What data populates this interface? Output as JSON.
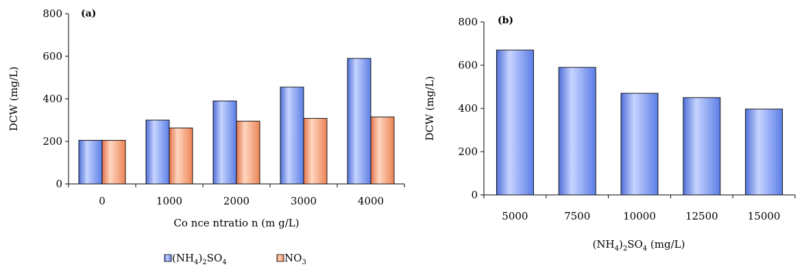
{
  "colors": {
    "series_blue": "#7f9cf4",
    "series_orange": "#f7a27a",
    "axis": "#000000"
  },
  "chart_data": [
    {
      "type": "bar",
      "panel_label": "(a)",
      "categories": [
        "0",
        "1000",
        "2000",
        "3000",
        "4000"
      ],
      "series": [
        {
          "name": "(NH4)2SO4",
          "values": [
            205,
            300,
            390,
            455,
            590
          ]
        },
        {
          "name": "NO3",
          "values": [
            205,
            263,
            295,
            308,
            315
          ]
        }
      ],
      "xlabel": "Co nce ntratio n (m g/L)",
      "ylabel": "DCW (mg/L)",
      "ylim": [
        0,
        800
      ],
      "yticks": [
        "0",
        "200",
        "400",
        "600",
        "800"
      ],
      "grid": false,
      "legend_position": "bottom"
    },
    {
      "type": "bar",
      "panel_label": "(b)",
      "categories": [
        "5000",
        "7500",
        "10000",
        "12500",
        "15000"
      ],
      "values": [
        670,
        590,
        470,
        450,
        397
      ],
      "xlabel": "(NH4)2SO4 (mg/L)",
      "ylabel": "DCW (mg/L)",
      "ylim": [
        0,
        800
      ],
      "yticks": [
        "0",
        "200",
        "400",
        "600",
        "800"
      ],
      "grid": false
    }
  ]
}
